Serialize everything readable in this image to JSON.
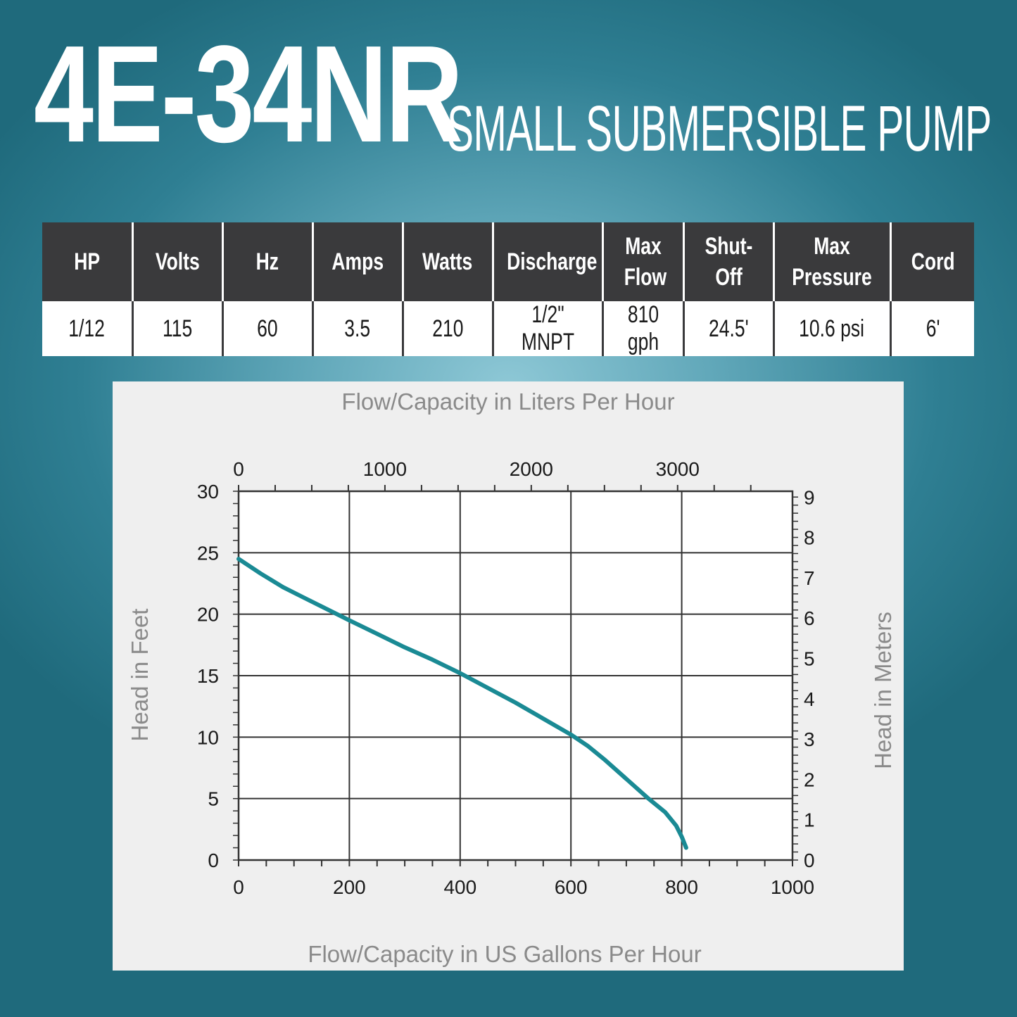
{
  "header": {
    "model": "4E-34NR",
    "subtitle": "SMALL SUBMERSIBLE PUMP"
  },
  "specs": {
    "headers": [
      "HP",
      "Volts",
      "Hz",
      "Amps",
      "Watts",
      "Discharge",
      "Max Flow",
      "Shut-Off",
      "Max Pressure",
      "Cord"
    ],
    "values": [
      "1/12",
      "115",
      "60",
      "3.5",
      "210",
      "1/2\" MNPT",
      "810 gph",
      "24.5'",
      "10.6 psi",
      "6'"
    ]
  },
  "colors": {
    "curve": "#1a8a94",
    "header_bg": "#3a3a3c",
    "axis_label": "#8a8a8a"
  },
  "chart_data": {
    "type": "line",
    "top_axis_title": "Flow/Capacity in Liters Per Hour",
    "xlabel": "Flow/Capacity in US Gallons Per Hour",
    "ylabel": "Head in Feet",
    "y2label": "Head in Meters",
    "xlim": [
      0,
      1000
    ],
    "ylim": [
      0,
      30
    ],
    "x2lim": [
      0,
      3785
    ],
    "y2lim": [
      0,
      9.144
    ],
    "x_ticks": [
      "0",
      "200",
      "400",
      "600",
      "800",
      "1000"
    ],
    "y_ticks": [
      "0",
      "5",
      "10",
      "15",
      "20",
      "25",
      "30"
    ],
    "x2_ticks": [
      "0",
      "1000",
      "2000",
      "3000"
    ],
    "y2_ticks": [
      "0",
      "1",
      "2",
      "3",
      "4",
      "5",
      "6",
      "7",
      "8",
      "9"
    ],
    "grid": true,
    "series": [
      {
        "x": [
          0,
          40,
          80,
          120,
          160,
          200,
          250,
          300,
          350,
          400,
          450,
          500,
          550,
          600,
          630,
          660,
          700,
          740,
          770,
          790,
          800,
          808
        ],
        "y": [
          24.5,
          23.3,
          22.2,
          21.3,
          20.4,
          19.5,
          18.4,
          17.3,
          16.3,
          15.2,
          14.0,
          12.8,
          11.5,
          10.2,
          9.3,
          8.2,
          6.6,
          5.0,
          3.9,
          2.8,
          1.9,
          1.0
        ]
      }
    ]
  }
}
